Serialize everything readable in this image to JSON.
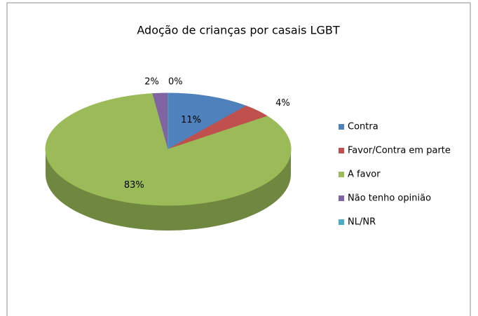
{
  "chart_data": {
    "type": "pie3d",
    "title": "Adoção de crianças por casais LGBT",
    "categories": [
      "Contra",
      "Favor/Contra em parte",
      "A favor",
      "Não tenho opinião",
      "NL/NR"
    ],
    "values": [
      11,
      4,
      83,
      2,
      0
    ],
    "value_labels": [
      "11%",
      "4%",
      "83%",
      "2%",
      "0%"
    ],
    "colors": [
      "#4f81bd",
      "#c0504d",
      "#9bbb59",
      "#8064a2",
      "#4bacc6"
    ],
    "legend": "right"
  }
}
